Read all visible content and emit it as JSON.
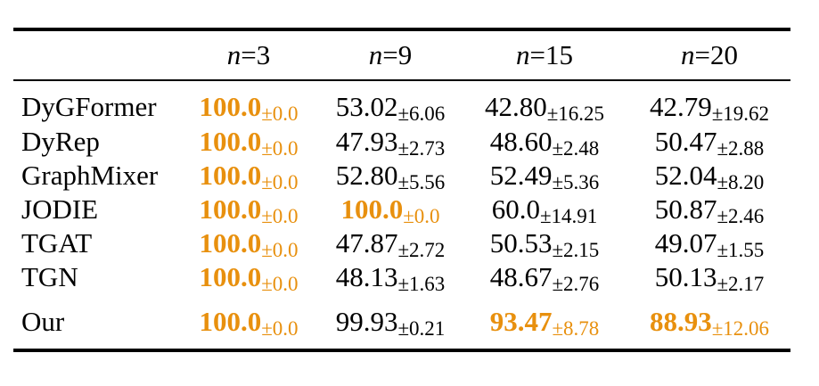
{
  "table": {
    "highlight_color": "#E8900E",
    "columns": [
      {
        "var": "n",
        "eq": "=3"
      },
      {
        "var": "n",
        "eq": "=9"
      },
      {
        "var": "n",
        "eq": "=15"
      },
      {
        "var": "n",
        "eq": "=20"
      }
    ],
    "rows": [
      {
        "method": "DyGFormer",
        "cells": [
          {
            "value": "100.0",
            "std": "±0.0",
            "best": true
          },
          {
            "value": "53.02",
            "std": "±6.06",
            "best": false
          },
          {
            "value": "42.80",
            "std": "±16.25",
            "best": false
          },
          {
            "value": "42.79",
            "std": "±19.62",
            "best": false
          }
        ]
      },
      {
        "method": "DyRep",
        "cells": [
          {
            "value": "100.0",
            "std": "±0.0",
            "best": true
          },
          {
            "value": "47.93",
            "std": "±2.73",
            "best": false
          },
          {
            "value": "48.60",
            "std": "±2.48",
            "best": false
          },
          {
            "value": "50.47",
            "std": "±2.88",
            "best": false
          }
        ]
      },
      {
        "method": "GraphMixer",
        "cells": [
          {
            "value": "100.0",
            "std": "±0.0",
            "best": true
          },
          {
            "value": "52.80",
            "std": "±5.56",
            "best": false
          },
          {
            "value": "52.49",
            "std": "±5.36",
            "best": false
          },
          {
            "value": "52.04",
            "std": "±8.20",
            "best": false
          }
        ]
      },
      {
        "method": "JODIE",
        "cells": [
          {
            "value": "100.0",
            "std": "±0.0",
            "best": true
          },
          {
            "value": "100.0",
            "std": "±0.0",
            "best": true
          },
          {
            "value": "60.0",
            "std": "±14.91",
            "best": false
          },
          {
            "value": "50.87",
            "std": "±2.46",
            "best": false
          }
        ]
      },
      {
        "method": "TGAT",
        "cells": [
          {
            "value": "100.0",
            "std": "±0.0",
            "best": true
          },
          {
            "value": "47.87",
            "std": "±2.72",
            "best": false
          },
          {
            "value": "50.53",
            "std": "±2.15",
            "best": false
          },
          {
            "value": "49.07",
            "std": "±1.55",
            "best": false
          }
        ]
      },
      {
        "method": "TGN",
        "cells": [
          {
            "value": "100.0",
            "std": "±0.0",
            "best": true
          },
          {
            "value": "48.13",
            "std": "±1.63",
            "best": false
          },
          {
            "value": "48.67",
            "std": "±2.76",
            "best": false
          },
          {
            "value": "50.13",
            "std": "±2.17",
            "best": false
          }
        ]
      },
      {
        "method": "Our",
        "cells": [
          {
            "value": "100.0",
            "std": "±0.0",
            "best": true
          },
          {
            "value": "99.93",
            "std": "±0.21",
            "best": false
          },
          {
            "value": "93.47",
            "std": "±8.78",
            "best": true
          },
          {
            "value": "88.93",
            "std": "±12.06",
            "best": true
          }
        ]
      }
    ]
  }
}
